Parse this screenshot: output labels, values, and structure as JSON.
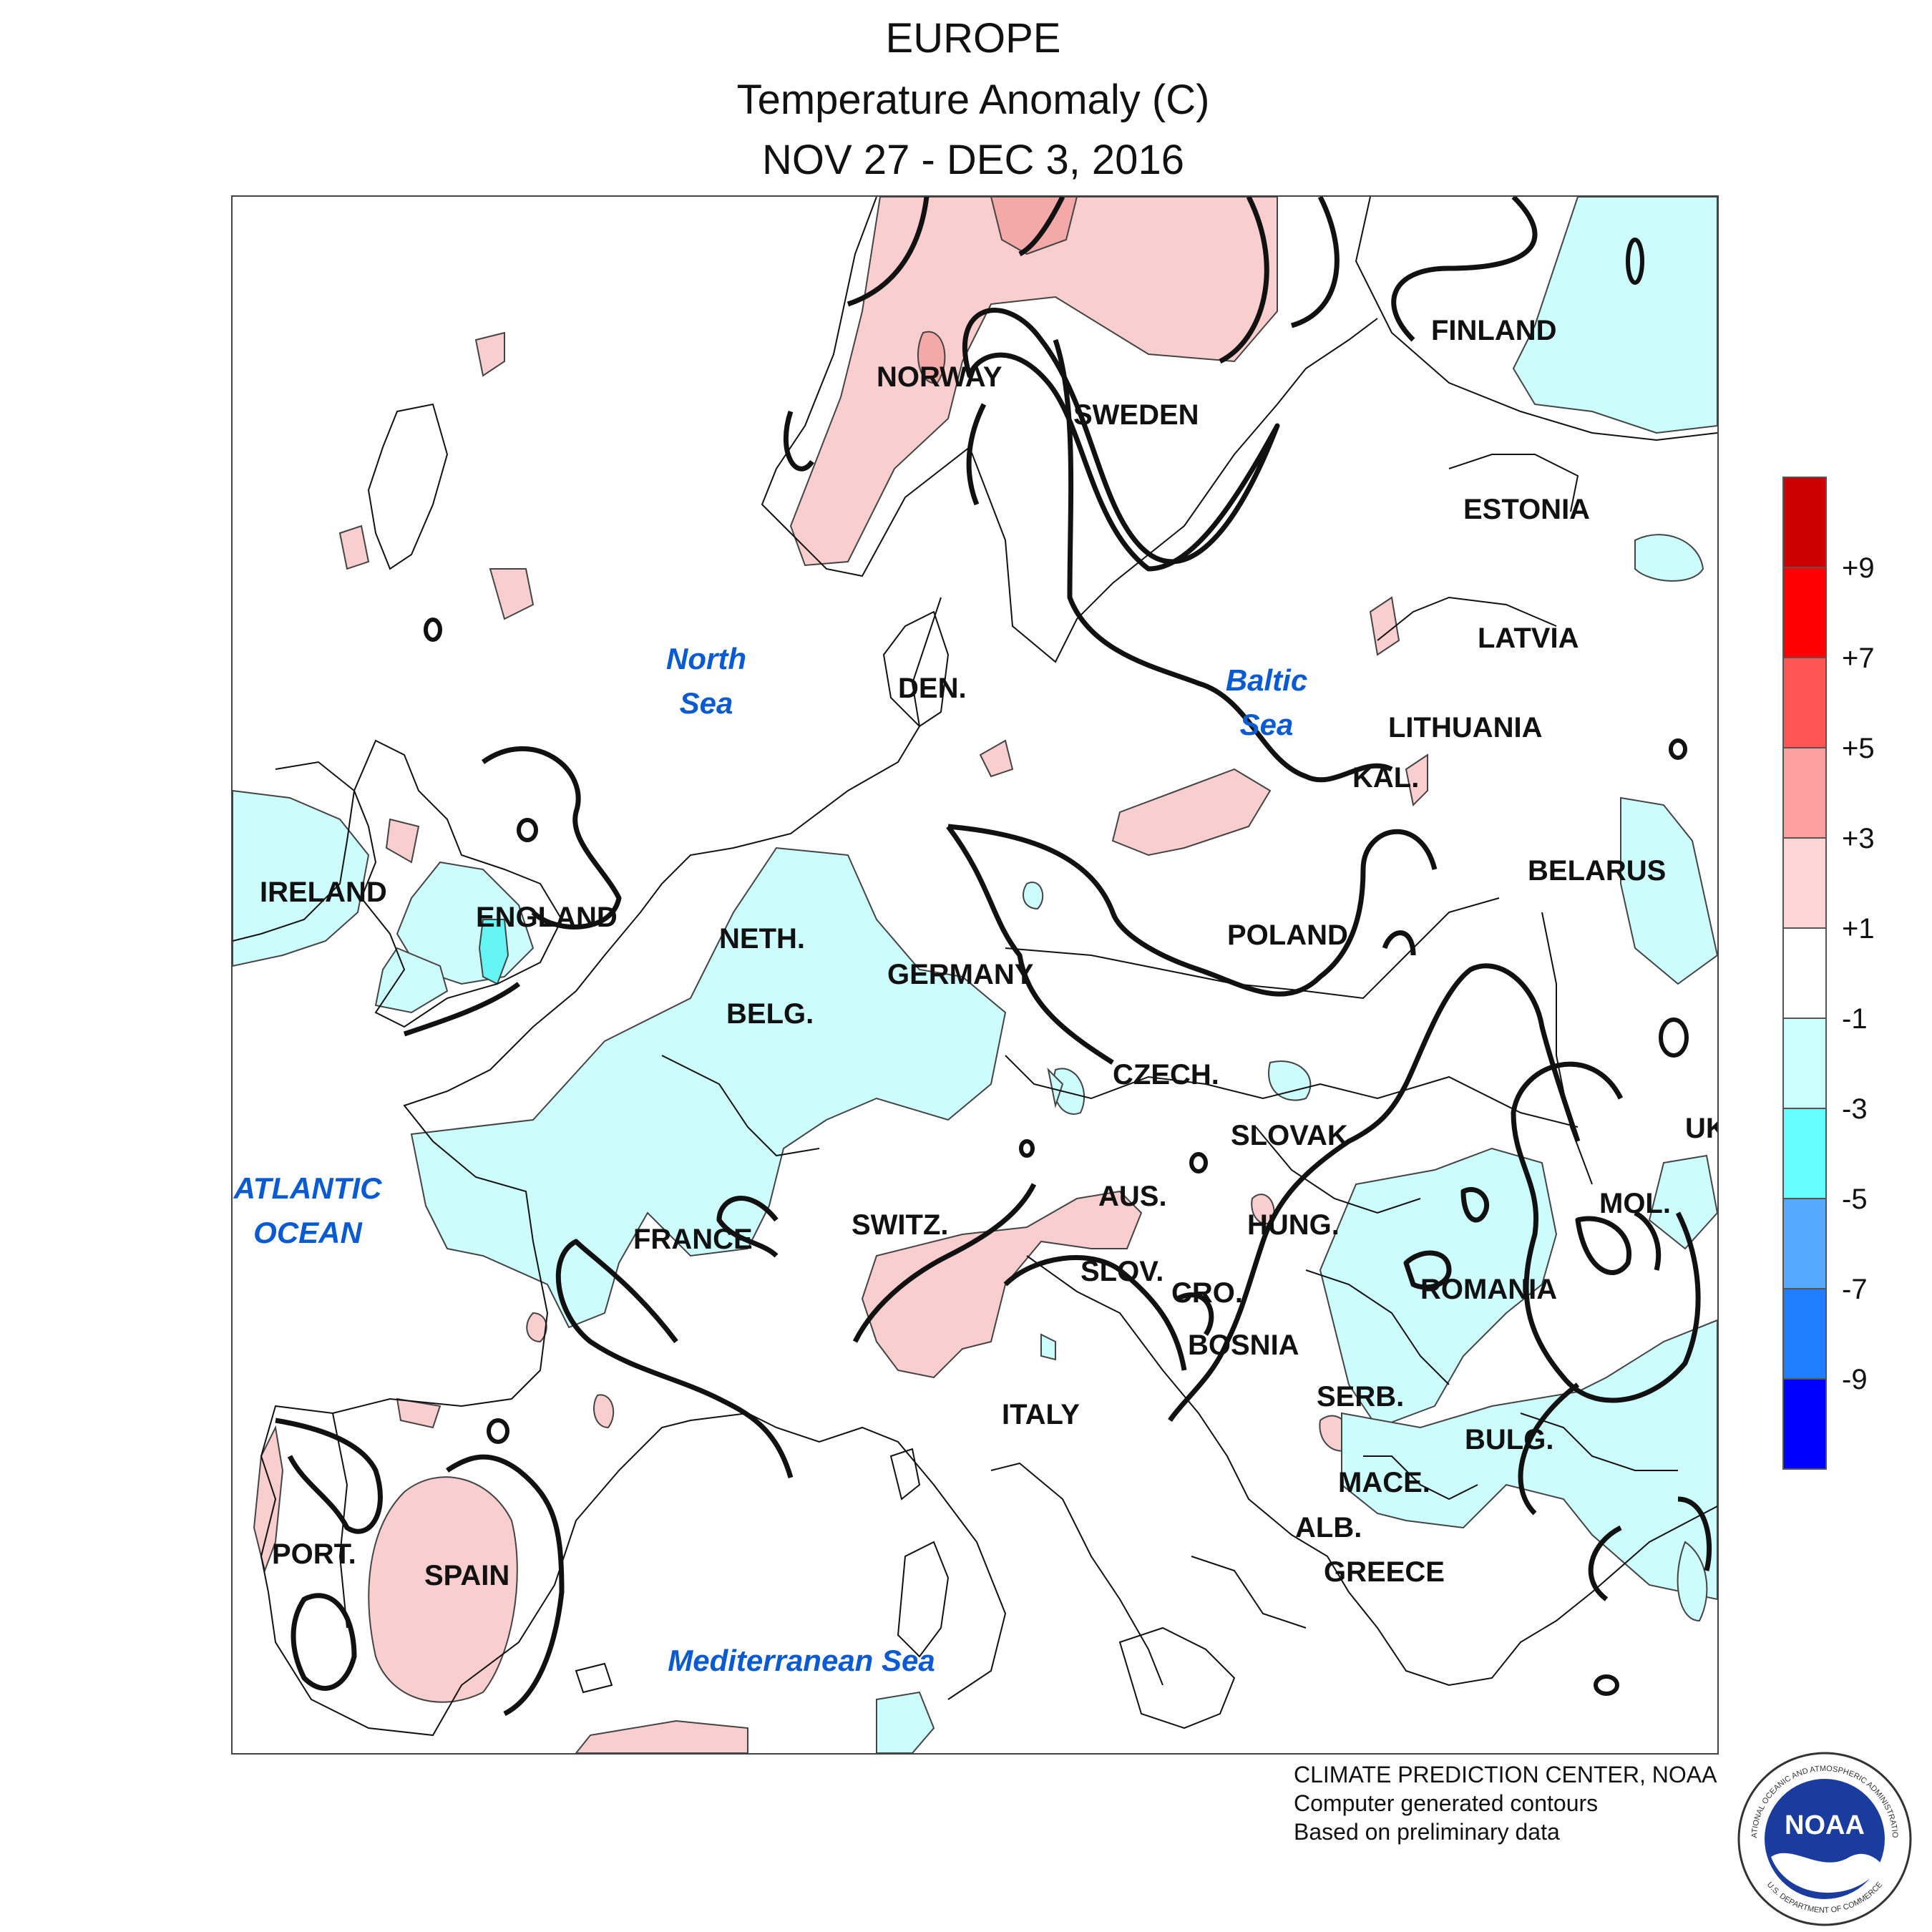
{
  "title": {
    "line1": "EUROPE",
    "line2": "Temperature Anomaly (C)",
    "line3": "NOV 27 - DEC 3, 2016"
  },
  "map_labels": {
    "countries": {
      "finland": "FINLAND",
      "norway": "NORWAY",
      "sweden": "SWEDEN",
      "estonia": "ESTONIA",
      "latvia": "LATVIA",
      "lithuania": "LITHUANIA",
      "kal": "KAL.",
      "belarus": "BELARUS",
      "den": "DEN.",
      "ireland": "IRELAND",
      "england": "ENGLAND",
      "neth": "NETH.",
      "germany": "GERMANY",
      "poland": "POLAND",
      "belg": "BELG.",
      "czech": "CZECH.",
      "slovak": "SLOVAK",
      "uk": "UK",
      "france": "FRANCE",
      "switz": "SWITZ.",
      "aus": "AUS.",
      "hung": "HUNG.",
      "mol": "MOL.",
      "slov": "SLOV.",
      "cro": "CRO.",
      "romania": "ROMANIA",
      "bosnia": "BOSNIA",
      "serb": "SERB.",
      "italy": "ITALY",
      "bulg": "BULG.",
      "mace": "MACE.",
      "alb": "ALB.",
      "greece": "GREECE",
      "port": "PORT.",
      "spain": "SPAIN"
    },
    "water": {
      "north_sea_1": "North",
      "north_sea_2": "Sea",
      "baltic_1": "Baltic",
      "baltic_2": "Sea",
      "atlantic_1": "ATLANTIC",
      "atlantic_2": "OCEAN",
      "med": "Mediterranean Sea"
    }
  },
  "legend": {
    "labels": [
      "+9",
      "+7",
      "+5",
      "+3",
      "+1",
      "-1",
      "-3",
      "-5",
      "-7",
      "-9"
    ],
    "colors": [
      "#cc0000",
      "#ff0000",
      "#ff5555",
      "#ffa0a0",
      "#ffd6d6",
      "#ffffff",
      "#ccffff",
      "#66ffff",
      "#55aaff",
      "#1e7fff",
      "#0000ff"
    ]
  },
  "colors": {
    "warm_light": "#f8cece",
    "warm_mid": "#f4a9a9",
    "cool_light": "#ccfcfc",
    "cool_mid": "#66f5f5",
    "land_border": "#000000",
    "water_label": "#0a5ad2"
  },
  "credits": {
    "line1": "CLIMATE PREDICTION CENTER, NOAA",
    "line2": "Computer generated contours",
    "line3": "Based on preliminary data"
  },
  "logo": {
    "text": "NOAA",
    "ring_top": "NATIONAL OCEANIC AND ATMOSPHERIC ADMINISTRATION",
    "ring_bottom": "U.S. DEPARTMENT OF COMMERCE"
  }
}
